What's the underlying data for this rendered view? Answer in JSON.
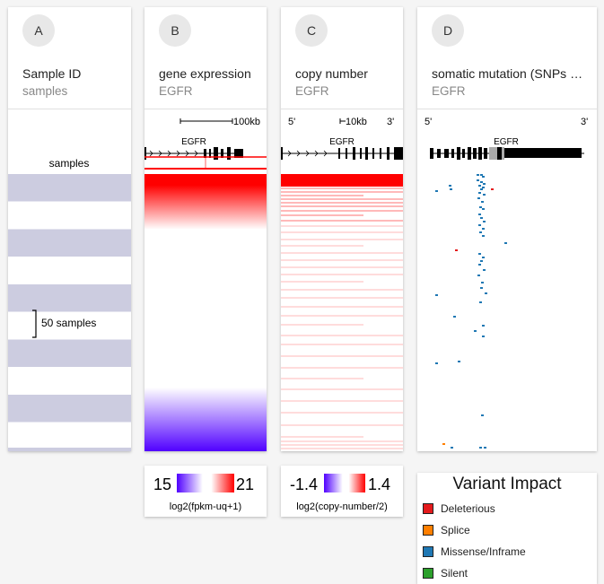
{
  "columns": [
    {
      "badge": "A",
      "title": "Sample ID",
      "subtitle": "samples"
    },
    {
      "badge": "B",
      "title": "gene expression",
      "subtitle": "EGFR"
    },
    {
      "badge": "C",
      "title": "copy number",
      "subtitle": "EGFR"
    },
    {
      "badge": "D",
      "title": "somatic mutation (SNPs and small INDELs)",
      "subtitle": "EGFR"
    }
  ],
  "sample_track": {
    "header": "samples",
    "bracket_label": "50 samples",
    "band_color": "#cccce0"
  },
  "expression_track": {
    "scale_label": "100kb",
    "gene": "EGFR",
    "high_color": "#ff0000",
    "low_color": "#5000ff"
  },
  "copy_number_track": {
    "prime5": "5'",
    "prime3": "3'",
    "scale_label": "10kb",
    "gene": "EGFR",
    "color": "#ff0000"
  },
  "mutation_track": {
    "prime5": "5'",
    "prime3": "3'",
    "gene": "EGFR"
  },
  "legend_expression": {
    "min": "15",
    "max": "21",
    "caption": "log2(fpkm-uq+1)"
  },
  "legend_copy": {
    "min": "-1.4",
    "max": "1.4",
    "caption": "log2(copy-number/2)"
  },
  "legend_variant": {
    "title": "Variant Impact",
    "items": [
      {
        "label": "Deleterious",
        "color": "#e41a1c"
      },
      {
        "label": "Splice",
        "color": "#ff7f00"
      },
      {
        "label": "Missense/Inframe",
        "color": "#1f78b4"
      },
      {
        "label": "Silent",
        "color": "#2ca02c"
      }
    ]
  }
}
